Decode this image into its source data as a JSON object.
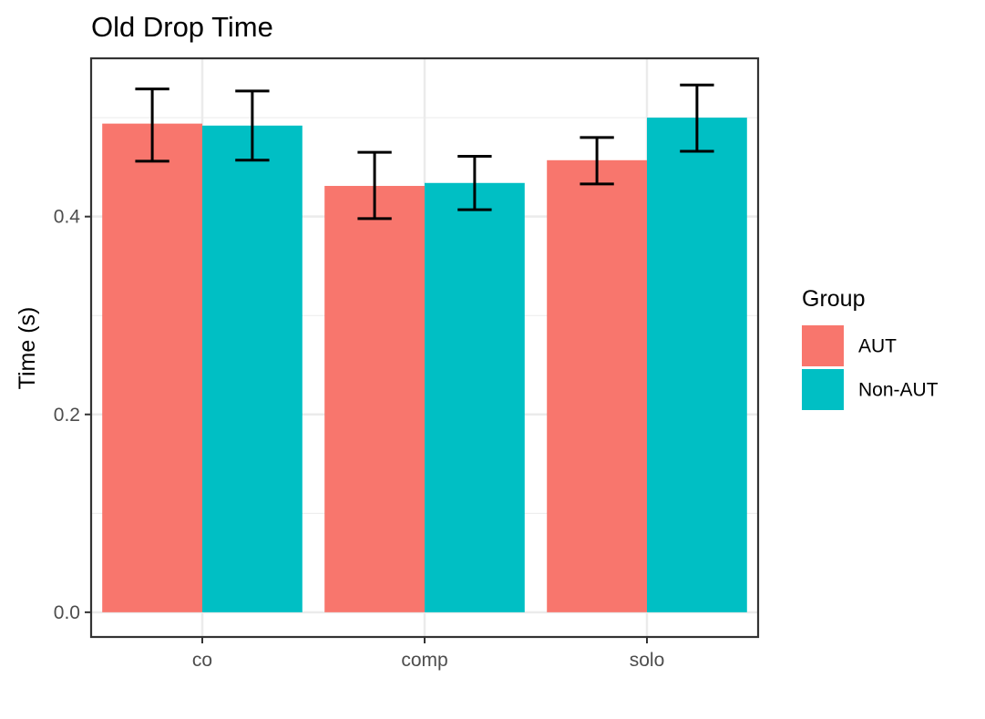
{
  "chart_data": {
    "type": "bar",
    "title": "Old Drop Time",
    "xlabel": "",
    "ylabel": "Time (s)",
    "categories": [
      "co",
      "comp",
      "solo"
    ],
    "series": [
      {
        "name": "AUT",
        "color": "#F8766D",
        "values": [
          0.494,
          0.431,
          0.457
        ],
        "error_low": [
          0.456,
          0.398,
          0.433
        ],
        "error_high": [
          0.529,
          0.465,
          0.48
        ]
      },
      {
        "name": "Non-AUT",
        "color": "#00BFC4",
        "values": [
          0.492,
          0.434,
          0.5
        ],
        "error_low": [
          0.457,
          0.407,
          0.466
        ],
        "error_high": [
          0.527,
          0.461,
          0.533
        ]
      }
    ],
    "ylim": [
      -0.025,
      0.56
    ],
    "yticks": [
      0.0,
      0.2,
      0.4
    ],
    "ytick_labels": [
      "0.0",
      "0.2",
      "0.4"
    ],
    "grid": true,
    "legend": {
      "title": "Group",
      "position": "right"
    }
  }
}
